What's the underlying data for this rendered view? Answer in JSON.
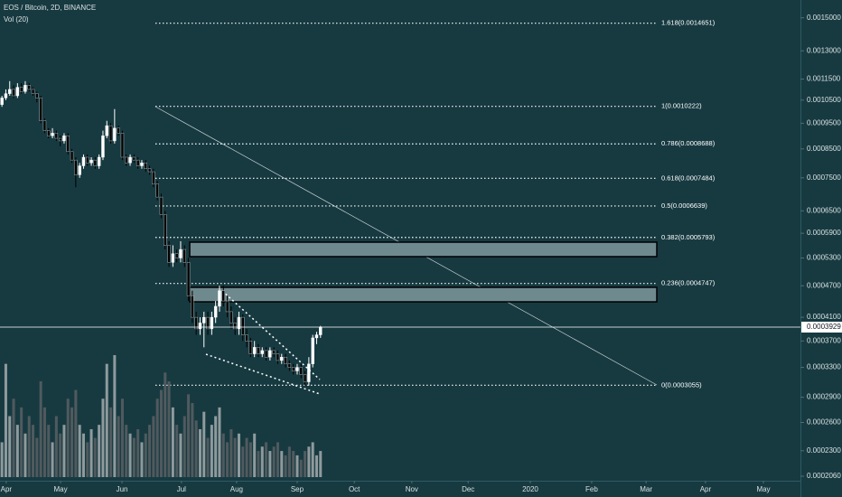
{
  "chart_data": {
    "type": "candlestick",
    "title": "EOS / Bitcoin, 2D, BINANCE",
    "subtitle": "Vol (20)",
    "log_scale": true,
    "up_color": "#ffffff",
    "down_color": "#000000",
    "volume_up_color": "#8f9a9c",
    "volume_down_color": "#505a5e",
    "xlim": [
      -0.5,
      205.3
    ],
    "xticks": [
      {
        "value": 1.1,
        "label": "Apr"
      },
      {
        "value": 15.1,
        "label": "May"
      },
      {
        "value": 30.9,
        "label": "Jun"
      },
      {
        "value": 46.2,
        "label": "Jul"
      },
      {
        "value": 60.4,
        "label": "Aug"
      },
      {
        "value": 76.0,
        "label": "Sep"
      },
      {
        "value": 90.7,
        "label": "Oct"
      },
      {
        "value": 105.5,
        "label": "Nov"
      },
      {
        "value": 120.0,
        "label": "Dec"
      },
      {
        "value": 136.0,
        "label": "2020"
      },
      {
        "value": 151.8,
        "label": "Feb"
      },
      {
        "value": 165.8,
        "label": "Mar"
      },
      {
        "value": 181.1,
        "label": "Apr"
      },
      {
        "value": 196.0,
        "label": "May"
      }
    ],
    "ylim": [
      0.000202,
      0.00162
    ],
    "yticks": [
      {
        "value": 0.0015,
        "label": "0.0015000"
      },
      {
        "value": 0.0013,
        "label": "0.0013000"
      },
      {
        "value": 0.00115,
        "label": "0.0011500"
      },
      {
        "value": 0.00105,
        "label": "0.0010500"
      },
      {
        "value": 0.00095,
        "label": "0.0009500"
      },
      {
        "value": 0.00085,
        "label": "0.0008500"
      },
      {
        "value": 0.00075,
        "label": "0.0007500"
      },
      {
        "value": 0.00065,
        "label": "0.0006500"
      },
      {
        "value": 0.00059,
        "label": "0.0005900"
      },
      {
        "value": 0.00053,
        "label": "0.0005300"
      },
      {
        "value": 0.00047,
        "label": "0.0004700"
      },
      {
        "value": 0.00041,
        "label": "0.0004100"
      },
      {
        "value": 0.00037,
        "label": "0.0003700"
      },
      {
        "value": 0.00033,
        "label": "0.0003300"
      },
      {
        "value": 0.00029,
        "label": "0.0002900"
      },
      {
        "value": 0.00026,
        "label": "0.0002600"
      },
      {
        "value": 0.00023,
        "label": "0.0002300"
      },
      {
        "value": 0.000206,
        "label": "0.0002060"
      }
    ],
    "last_price": 0.0003929,
    "fib_levels": [
      {
        "value": 0.0014651,
        "label": "1.618(0.0014651)"
      },
      {
        "value": 0.0010222,
        "label": "1(0.0010222)"
      },
      {
        "value": 0.0008688,
        "label": "0.786(0.0008688)"
      },
      {
        "value": 0.0007484,
        "label": "0.618(0.0007484)"
      },
      {
        "value": 0.0006639,
        "label": "0.5(0.0006639)"
      },
      {
        "value": 0.0005793,
        "label": "0.382(0.0005793)"
      },
      {
        "value": 0.0004747,
        "label": "0.236(0.0004747)"
      },
      {
        "value": 0.0003055,
        "label": "0(0.0003055)"
      }
    ],
    "ohlc": [
      [
        0.00103,
        0.00107,
        0.00102,
        0.00106
      ],
      [
        0.00106,
        0.0011,
        0.00105,
        0.00108
      ],
      [
        0.00108,
        0.00114,
        0.00107,
        0.0011
      ],
      [
        0.0011,
        0.00112,
        0.00106,
        0.00107
      ],
      [
        0.00107,
        0.00113,
        0.00106,
        0.00111
      ],
      [
        0.00111,
        0.00113,
        0.00108,
        0.00109
      ],
      [
        0.00109,
        0.00114,
        0.00108,
        0.00112
      ],
      [
        0.00112,
        0.00113,
        0.00109,
        0.0011
      ],
      [
        0.0011,
        0.00111,
        0.00107,
        0.00108
      ],
      [
        0.00108,
        0.00109,
        0.00104,
        0.00106
      ],
      [
        0.00106,
        0.00107,
        0.00095,
        0.00096
      ],
      [
        0.00096,
        0.00097,
        0.00091,
        0.00092
      ],
      [
        0.00092,
        0.00093,
        0.00089,
        0.0009
      ],
      [
        0.0009,
        0.00093,
        0.00089,
        0.00091
      ],
      [
        0.00091,
        0.00092,
        0.00088,
        0.00089
      ],
      [
        0.00089,
        0.0009,
        0.00086,
        0.00088
      ],
      [
        0.00088,
        0.00091,
        0.00087,
        0.0009
      ],
      [
        0.0009,
        0.00091,
        0.00083,
        0.00084
      ],
      [
        0.00084,
        0.00085,
        0.0008,
        0.00081
      ],
      [
        0.00081,
        0.00082,
        0.00072,
        0.00076
      ],
      [
        0.00076,
        0.0008,
        0.00075,
        0.00079
      ],
      [
        0.00079,
        0.00083,
        0.00078,
        0.00082
      ],
      [
        0.00082,
        0.00083,
        0.00079,
        0.0008
      ],
      [
        0.0008,
        0.00082,
        0.00079,
        0.00081
      ],
      [
        0.00081,
        0.00082,
        0.00078,
        0.00079
      ],
      [
        0.00079,
        0.00083,
        0.00078,
        0.00082
      ],
      [
        0.00082,
        0.00092,
        0.00081,
        0.0009
      ],
      [
        0.0009,
        0.00096,
        0.00089,
        0.00094
      ],
      [
        0.00094,
        0.00095,
        0.00087,
        0.00088
      ],
      [
        0.00088,
        0.00101,
        0.00087,
        0.00093
      ],
      [
        0.00093,
        0.00094,
        0.0009,
        0.00091
      ],
      [
        0.00091,
        0.00092,
        0.00081,
        0.00082
      ],
      [
        0.00082,
        0.00083,
        0.00079,
        0.0008
      ],
      [
        0.0008,
        0.00083,
        0.00079,
        0.00082
      ],
      [
        0.00082,
        0.00083,
        0.0008,
        0.00081
      ],
      [
        0.00081,
        0.00082,
        0.00078,
        0.00079
      ],
      [
        0.00079,
        0.00081,
        0.00078,
        0.0008
      ],
      [
        0.0008,
        0.00081,
        0.00077,
        0.00078
      ],
      [
        0.00078,
        0.00079,
        0.00076,
        0.00077
      ],
      [
        0.00077,
        0.00078,
        0.00072,
        0.00073
      ],
      [
        0.00073,
        0.00074,
        0.00068,
        0.00069
      ],
      [
        0.00069,
        0.0007,
        0.00063,
        0.00064
      ],
      [
        0.00064,
        0.00065,
        0.00055,
        0.00056
      ],
      [
        0.00056,
        0.00057,
        0.00051,
        0.00052
      ],
      [
        0.00052,
        0.00056,
        0.00051,
        0.00054
      ],
      [
        0.00054,
        0.00055,
        0.00052,
        0.00053
      ],
      [
        0.00053,
        0.00057,
        0.00052,
        0.00055
      ],
      [
        0.00055,
        0.00056,
        0.00051,
        0.00052
      ],
      [
        0.00052,
        0.00053,
        0.00044,
        0.00045
      ],
      [
        0.00045,
        0.00046,
        0.0004,
        0.00041
      ],
      [
        0.00041,
        0.00042,
        0.00038,
        0.00039
      ],
      [
        0.00039,
        0.00041,
        0.00038,
        0.0004
      ],
      [
        0.0004,
        0.00042,
        0.00036,
        0.00041
      ],
      [
        0.00041,
        0.00042,
        0.00038,
        0.00039
      ],
      [
        0.00039,
        0.00042,
        0.00038,
        0.00041
      ],
      [
        0.00041,
        0.00044,
        0.0004,
        0.00043
      ],
      [
        0.00043,
        0.00047,
        0.00042,
        0.00046
      ],
      [
        0.00046,
        0.00047,
        0.00043,
        0.00044
      ],
      [
        0.00044,
        0.00045,
        0.00041,
        0.00042
      ],
      [
        0.00042,
        0.00043,
        0.00039,
        0.0004
      ],
      [
        0.0004,
        0.00041,
        0.00038,
        0.00039
      ],
      [
        0.00039,
        0.00042,
        0.00038,
        0.00041
      ],
      [
        0.00041,
        0.000415,
        0.00037,
        0.00038
      ],
      [
        0.00038,
        0.00039,
        0.00036,
        0.00037
      ],
      [
        0.00037,
        0.000375,
        0.000345,
        0.00035
      ],
      [
        0.00035,
        0.00037,
        0.000345,
        0.00036
      ],
      [
        0.00036,
        0.000365,
        0.000345,
        0.00035
      ],
      [
        0.00035,
        0.00036,
        0.000345,
        0.000355
      ],
      [
        0.000355,
        0.00036,
        0.00034,
        0.000345
      ],
      [
        0.000345,
        0.00036,
        0.00034,
        0.000355
      ],
      [
        0.000355,
        0.00036,
        0.000345,
        0.00035
      ],
      [
        0.00035,
        0.000355,
        0.000335,
        0.00034
      ],
      [
        0.00034,
        0.00035,
        0.000335,
        0.000345
      ],
      [
        0.000345,
        0.00035,
        0.00033,
        0.000335
      ],
      [
        0.000335,
        0.00034,
        0.000325,
        0.00033
      ],
      [
        0.00033,
        0.000335,
        0.00032,
        0.000325
      ],
      [
        0.000325,
        0.000335,
        0.00032,
        0.00033
      ],
      [
        0.00033,
        0.000335,
        0.000315,
        0.00032
      ],
      [
        0.00032,
        0.000325,
        0.000305,
        0.00031
      ],
      [
        0.00031,
        0.000345,
        0.000305,
        0.000335
      ],
      [
        0.000335,
        0.00038,
        0.00033,
        0.000375
      ],
      [
        0.000375,
        0.000385,
        0.000365,
        0.00038
      ],
      [
        0.00038,
        0.000395,
        0.000375,
        0.0003929
      ]
    ],
    "volume": [
      40,
      130,
      70,
      90,
      60,
      80,
      50,
      70,
      60,
      45,
      110,
      80,
      60,
      40,
      70,
      50,
      60,
      90,
      80,
      100,
      60,
      50,
      40,
      55,
      45,
      60,
      90,
      130,
      80,
      140,
      70,
      90,
      60,
      50,
      45,
      55,
      40,
      50,
      60,
      70,
      90,
      100,
      120,
      110,
      80,
      60,
      50,
      70,
      95,
      85,
      65,
      55,
      75,
      45,
      60,
      70,
      80,
      50,
      40,
      55,
      45,
      50,
      35,
      45,
      40,
      50,
      30,
      35,
      40,
      30,
      35,
      40,
      30,
      25,
      35,
      30,
      25,
      20,
      30,
      35,
      40,
      25,
      30
    ]
  }
}
